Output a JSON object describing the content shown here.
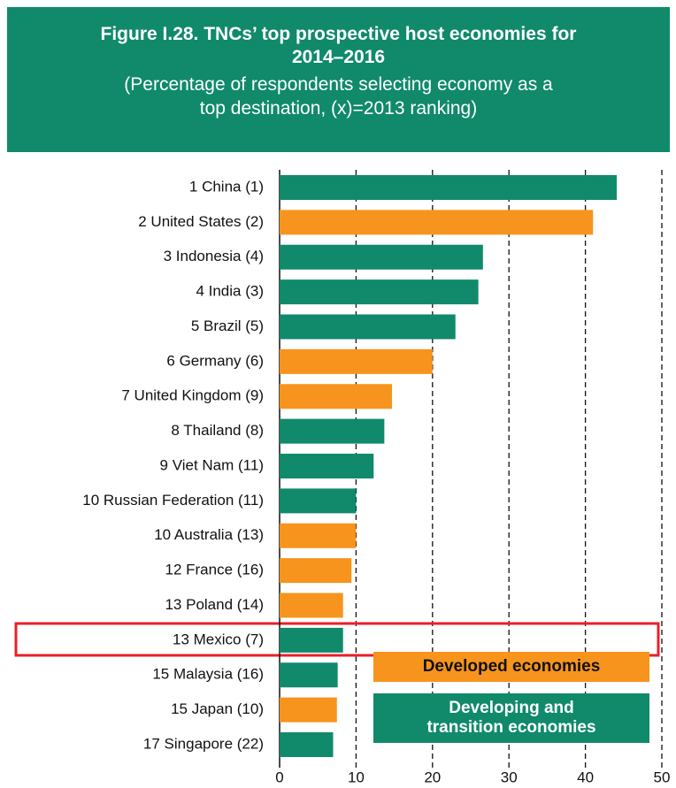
{
  "chart_data": {
    "type": "barh",
    "title": "Figure I.28. TNCs’ top prospective host economies for 2014–2016",
    "subtitle": "(Percentage of respondents selecting economy as a top destination, (x)=2013 ranking)",
    "categories": [
      "1 China (1)",
      "2 United States (2)",
      "3 Indonesia (4)",
      "4 India (3)",
      "5 Brazil (5)",
      "6 Germany (6)",
      "7 United Kingdom (9)",
      "8 Thailand (8)",
      "9 Viet Nam (11)",
      "10 Russian Federation (11)",
      "10 Australia (13)",
      "12 France (16)",
      "13 Poland (14)",
      "13 Mexico (7)",
      "15 Malaysia (16)",
      "15 Japan (10)",
      "17 Singapore (22)"
    ],
    "series": [
      {
        "name": "Developed economies",
        "color": "#f7941d",
        "values": [
          null,
          41,
          null,
          null,
          null,
          20,
          14.7,
          null,
          null,
          null,
          10,
          9.4,
          8.3,
          null,
          null,
          7.5,
          null
        ]
      },
      {
        "name": "Developing and transition economies",
        "color": "#108a6b",
        "values": [
          44.1,
          null,
          26.6,
          26,
          23,
          null,
          null,
          13.7,
          12.3,
          10,
          null,
          null,
          null,
          8.3,
          7.6,
          null,
          7
        ]
      }
    ],
    "xlim": [
      0,
      50
    ],
    "xticks": [
      0,
      10,
      20,
      30,
      40,
      50
    ],
    "grid": true
  }
}
